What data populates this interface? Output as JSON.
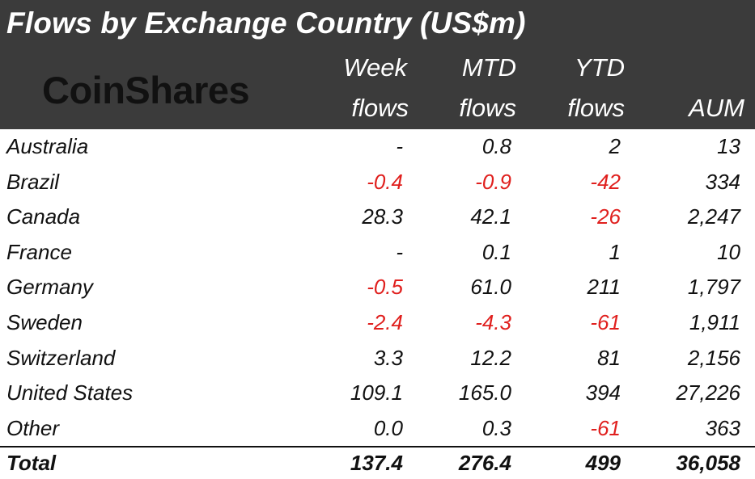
{
  "chart_data": {
    "type": "table",
    "title": "Flows by Exchange Country (US$m)",
    "logo": "CoinShares",
    "columns": [
      {
        "line1": "Week",
        "line2": "flows"
      },
      {
        "line1": "MTD",
        "line2": "flows"
      },
      {
        "line1": "YTD",
        "line2": "flows"
      },
      {
        "line1": "",
        "line2": "AUM"
      }
    ],
    "rows": [
      {
        "country": "Australia",
        "week": "-",
        "mtd": "0.8",
        "ytd": "2",
        "aum": "13"
      },
      {
        "country": "Brazil",
        "week": "-0.4",
        "mtd": "-0.9",
        "ytd": "-42",
        "aum": "334"
      },
      {
        "country": "Canada",
        "week": "28.3",
        "mtd": "42.1",
        "ytd": "-26",
        "aum": "2,247"
      },
      {
        "country": "France",
        "week": "-",
        "mtd": "0.1",
        "ytd": "1",
        "aum": "10"
      },
      {
        "country": "Germany",
        "week": "-0.5",
        "mtd": "61.0",
        "ytd": "211",
        "aum": "1,797"
      },
      {
        "country": "Sweden",
        "week": "-2.4",
        "mtd": "-4.3",
        "ytd": "-61",
        "aum": "1,911"
      },
      {
        "country": "Switzerland",
        "week": "3.3",
        "mtd": "12.2",
        "ytd": "81",
        "aum": "2,156"
      },
      {
        "country": "United States",
        "week": "109.1",
        "mtd": "165.0",
        "ytd": "394",
        "aum": "27,226"
      },
      {
        "country": "Other",
        "week": "0.0",
        "mtd": "0.3",
        "ytd": "-61",
        "aum": "363"
      }
    ],
    "total": {
      "country": "Total",
      "week": "137.4",
      "mtd": "276.4",
      "ytd": "499",
      "aum": "36,058"
    },
    "colors": {
      "header_bg": "#3b3b3b",
      "negative": "#e0201e",
      "text": "#111111"
    }
  }
}
